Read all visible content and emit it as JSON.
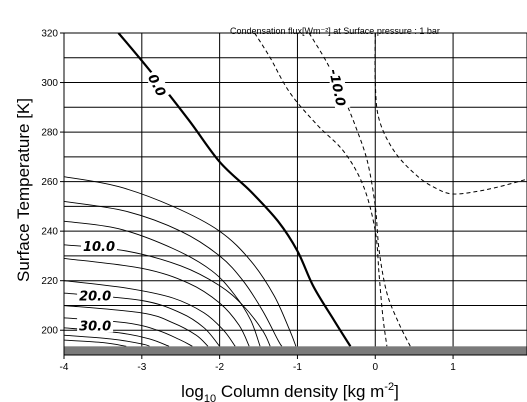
{
  "chart_data": {
    "type": "contour",
    "title": "Condensation flux[Wm⁻²] at Surface pressure : 1 bar",
    "xlabel_base": "log",
    "xlabel_sub": "10",
    "xlabel_rest": " Column density [kg m",
    "xlabel_sup": "-2",
    "xlabel_end": "]",
    "ylabel": "Surface Temperature [K]",
    "xlim": [
      -4,
      1.95
    ],
    "ylim": [
      190,
      320
    ],
    "xticks": [
      -4,
      -3,
      -2,
      -1,
      0,
      1
    ],
    "xtick_labels": [
      "-4",
      "-3",
      "-2",
      "-1",
      "0",
      "1"
    ],
    "yticks": [
      200,
      220,
      240,
      260,
      280,
      300,
      320
    ],
    "ytick_labels": [
      "200",
      "220",
      "240",
      "260",
      "280",
      "300",
      "320"
    ],
    "grid": true,
    "shaded_band": {
      "y_from": 190,
      "y_to": 193.5
    },
    "contour_labels": [
      {
        "text": "0.0",
        "x": -2.8,
        "y": 299,
        "rotation": 62
      },
      {
        "text": "-10.0",
        "x": -0.48,
        "y": 298,
        "rotation": 78
      },
      {
        "text": "10.0",
        "x": -3.55,
        "y": 234,
        "rotation": 0
      },
      {
        "text": "20.0",
        "x": -3.6,
        "y": 214,
        "rotation": 0
      },
      {
        "text": "30.0",
        "x": -3.6,
        "y": 202,
        "rotation": 0
      }
    ],
    "contours": [
      {
        "level": "0.0",
        "style": "bold",
        "points": [
          [
            -3.3,
            320
          ],
          [
            -2.9,
            305
          ],
          [
            -2.4,
            285
          ],
          [
            -2.0,
            268
          ],
          [
            -1.6,
            256
          ],
          [
            -1.25,
            244
          ],
          [
            -1.0,
            232
          ],
          [
            -0.8,
            218
          ],
          [
            -0.55,
            205
          ],
          [
            -0.32,
            193.5
          ]
        ]
      },
      {
        "level": "-10.0",
        "style": "dashed",
        "points": [
          [
            -0.85,
            320
          ],
          [
            -0.62,
            308
          ],
          [
            -0.42,
            295
          ],
          [
            -0.25,
            282
          ],
          [
            -0.1,
            268
          ],
          [
            0.0,
            250
          ],
          [
            0.05,
            232
          ],
          [
            0.15,
            215
          ],
          [
            0.3,
            203
          ],
          [
            0.45,
            193.5
          ]
        ]
      },
      {
        "level": "dashed-1",
        "style": "dashed",
        "points": [
          [
            -1.55,
            320
          ],
          [
            -1.35,
            310
          ],
          [
            -1.1,
            296
          ],
          [
            -0.75,
            283
          ],
          [
            -0.4,
            272
          ],
          [
            -0.15,
            258
          ],
          [
            0.0,
            240
          ],
          [
            0.05,
            222
          ],
          [
            0.1,
            205
          ],
          [
            0.15,
            193.5
          ]
        ]
      },
      {
        "level": "dashed-2",
        "style": "dashed",
        "points": [
          [
            0.0,
            320
          ],
          [
            0.0,
            300
          ],
          [
            0.05,
            285
          ],
          [
            0.25,
            272
          ],
          [
            0.55,
            262
          ],
          [
            0.8,
            257
          ],
          [
            1.0,
            255
          ],
          [
            1.3,
            256
          ],
          [
            1.6,
            258
          ],
          [
            1.95,
            261
          ]
        ]
      },
      {
        "level": "10.0",
        "style": "thin",
        "points": [
          [
            -4,
            234.5
          ],
          [
            -3.2,
            232
          ],
          [
            -2.5,
            226
          ],
          [
            -2.0,
            218
          ],
          [
            -1.7,
            210
          ],
          [
            -1.45,
            200
          ],
          [
            -1.35,
            193.5
          ]
        ]
      },
      {
        "level": "c1",
        "style": "thin",
        "points": [
          [
            -4,
            262
          ],
          [
            -3.3,
            258
          ],
          [
            -2.6,
            250
          ],
          [
            -2.0,
            240
          ],
          [
            -1.6,
            228
          ],
          [
            -1.3,
            214
          ],
          [
            -1.1,
            200
          ],
          [
            -1.02,
            193.5
          ]
        ]
      },
      {
        "level": "c2",
        "style": "thin",
        "points": [
          [
            -4,
            252
          ],
          [
            -3.2,
            248
          ],
          [
            -2.5,
            240
          ],
          [
            -2.0,
            230
          ],
          [
            -1.7,
            220
          ],
          [
            -1.45,
            208
          ],
          [
            -1.25,
            196
          ],
          [
            -1.2,
            193.5
          ]
        ]
      },
      {
        "level": "c3",
        "style": "thin",
        "points": [
          [
            -4,
            244
          ],
          [
            -3.3,
            241
          ],
          [
            -2.6,
            233
          ],
          [
            -2.1,
            224
          ],
          [
            -1.8,
            214
          ],
          [
            -1.6,
            204
          ],
          [
            -1.48,
            193.5
          ]
        ]
      },
      {
        "level": "c4",
        "style": "thin",
        "points": [
          [
            -4,
            229
          ],
          [
            -3.0,
            225
          ],
          [
            -2.4,
            219
          ],
          [
            -2.0,
            211
          ],
          [
            -1.75,
            202
          ],
          [
            -1.62,
            193.5
          ]
        ]
      },
      {
        "level": "20.0",
        "style": "thin",
        "points": [
          [
            -4,
            220
          ],
          [
            -3.2,
            217
          ],
          [
            -2.6,
            213
          ],
          [
            -2.2,
            207
          ],
          [
            -1.95,
            200
          ],
          [
            -1.8,
            193.5
          ]
        ]
      },
      {
        "level": "c6",
        "style": "thin",
        "points": [
          [
            -4,
            215
          ],
          [
            -3.0,
            212
          ],
          [
            -2.5,
            207
          ],
          [
            -2.2,
            201
          ],
          [
            -2.0,
            193.5
          ]
        ]
      },
      {
        "level": "c7",
        "style": "thin",
        "points": [
          [
            -4,
            210
          ],
          [
            -3.0,
            207
          ],
          [
            -2.6,
            203
          ],
          [
            -2.3,
            198
          ],
          [
            -2.15,
            193.5
          ]
        ]
      },
      {
        "level": "30.0",
        "style": "thin",
        "points": [
          [
            -4,
            205
          ],
          [
            -3.2,
            203
          ],
          [
            -2.8,
            200
          ],
          [
            -2.5,
            196
          ],
          [
            -2.35,
            193.5
          ]
        ]
      },
      {
        "level": "c9",
        "style": "thin",
        "points": [
          [
            -4,
            201
          ],
          [
            -3.3,
            199
          ],
          [
            -2.9,
            196.5
          ],
          [
            -2.65,
            193.5
          ]
        ]
      },
      {
        "level": "c10",
        "style": "thin",
        "points": [
          [
            -4,
            198
          ],
          [
            -3.4,
            196.5
          ],
          [
            -3.0,
            194.5
          ],
          [
            -2.9,
            193.5
          ]
        ]
      },
      {
        "level": "c11",
        "style": "thin",
        "points": [
          [
            -4,
            196
          ],
          [
            -3.5,
            195
          ],
          [
            -3.2,
            193.5
          ]
        ]
      }
    ]
  }
}
